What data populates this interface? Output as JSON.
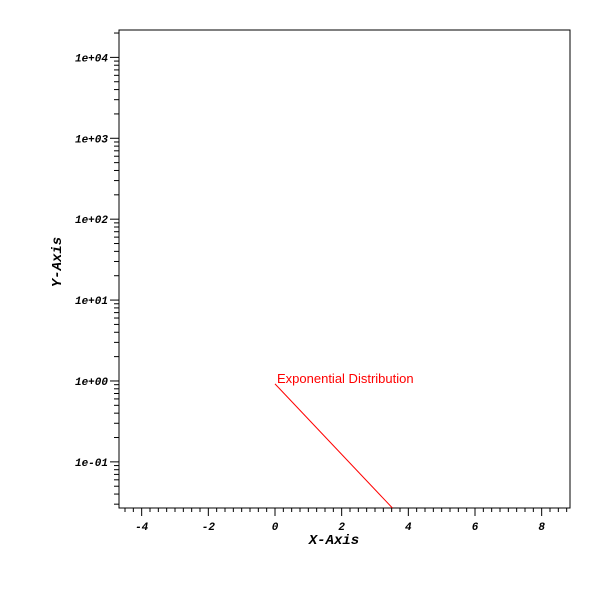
{
  "chart_data": {
    "type": "line",
    "title": "",
    "xlabel": "X-Axis",
    "ylabel": "Y-Axis",
    "x_scale": "linear",
    "y_scale": "log",
    "xlim": [
      -4.68,
      8.85
    ],
    "ylim": [
      0.0269,
      21800
    ],
    "grid": false,
    "legend_position": "none",
    "axis_color": "#000000",
    "background_color": "#ffffff",
    "ticks": {
      "x": {
        "major": [
          -4,
          -2,
          0,
          2,
          4,
          6,
          8
        ],
        "labels": [
          "-4",
          "-2",
          "0",
          "2",
          "4",
          "6",
          "8"
        ],
        "minor_step": 0.25
      },
      "y": {
        "major": [
          0.1,
          1,
          10,
          100,
          1000,
          10000
        ],
        "labels": [
          "1e-01",
          "1e+00",
          "1e+01",
          "1e+02",
          "1e+03",
          "1e+04"
        ],
        "minor_rule": "mantissas 2-9 each decade"
      }
    },
    "series": [
      {
        "name": "Exponential Distribution",
        "color": "#ff0000",
        "shape": "straight segment on semilog axes (y = exp(-x))",
        "x": [
          0,
          3.52
        ],
        "y": [
          0.92,
          0.027
        ]
      }
    ],
    "annotation": {
      "text": "Exponential Distribution",
      "color": "#ff0000",
      "anchored_at": "start of line, offset up-right"
    }
  }
}
